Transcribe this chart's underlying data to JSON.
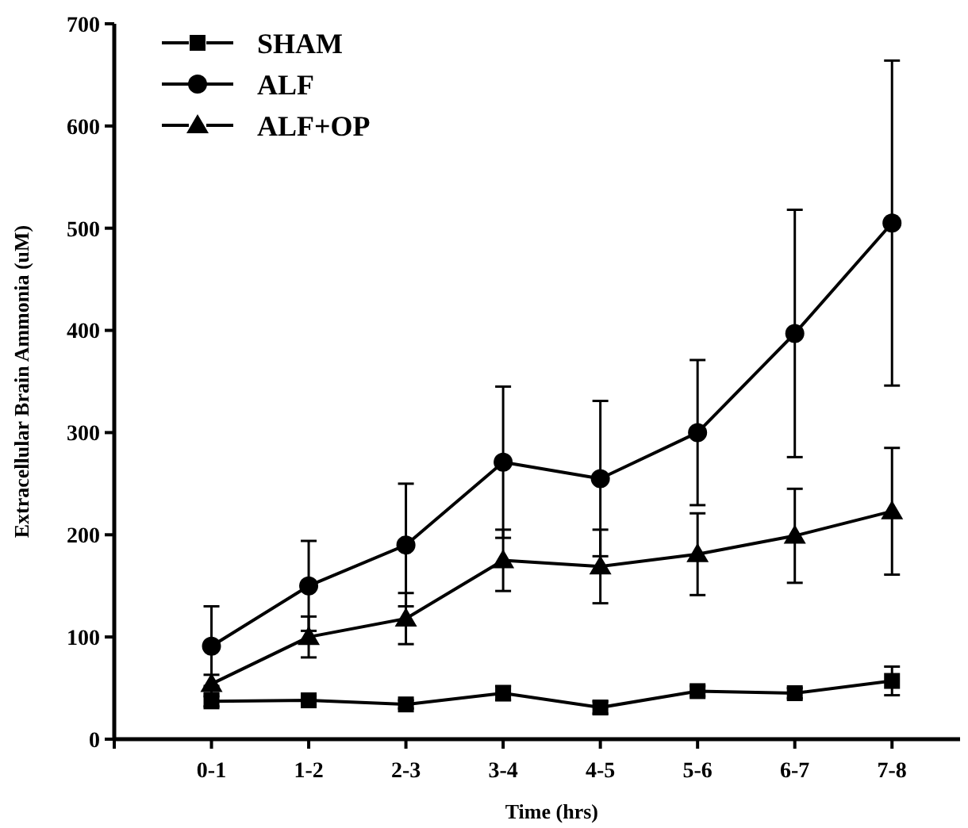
{
  "chart_data": {
    "type": "line",
    "xlabel": "Time (hrs)",
    "ylabel": "Extracellular Brain Ammonia (uM)",
    "categories": [
      "0-1",
      "1-2",
      "2-3",
      "3-4",
      "4-5",
      "5-6",
      "6-7",
      "7-8"
    ],
    "ylim": [
      0,
      700
    ],
    "yticks": [
      0,
      100,
      200,
      300,
      400,
      500,
      600,
      700
    ],
    "grid": false,
    "legend": "top left",
    "series": [
      {
        "name": "SHAM",
        "color": "#000000",
        "marker": "square",
        "values": [
          37,
          38,
          34,
          45,
          31,
          47,
          45,
          57
        ],
        "errors": [
          5,
          4,
          4,
          7,
          6,
          5,
          5,
          14
        ]
      },
      {
        "name": "ALF",
        "color": "#000000",
        "marker": "circle",
        "values": [
          91,
          150,
          190,
          271,
          255,
          300,
          397,
          505
        ],
        "errors": [
          39,
          44,
          60,
          74,
          76,
          71,
          121,
          159
        ]
      },
      {
        "name": "ALF+OP",
        "color": "#000000",
        "marker": "triangle",
        "values": [
          54,
          100,
          118,
          175,
          169,
          181,
          199,
          223
        ],
        "errors": [
          9,
          20,
          25,
          30,
          36,
          40,
          46,
          62
        ]
      }
    ]
  }
}
